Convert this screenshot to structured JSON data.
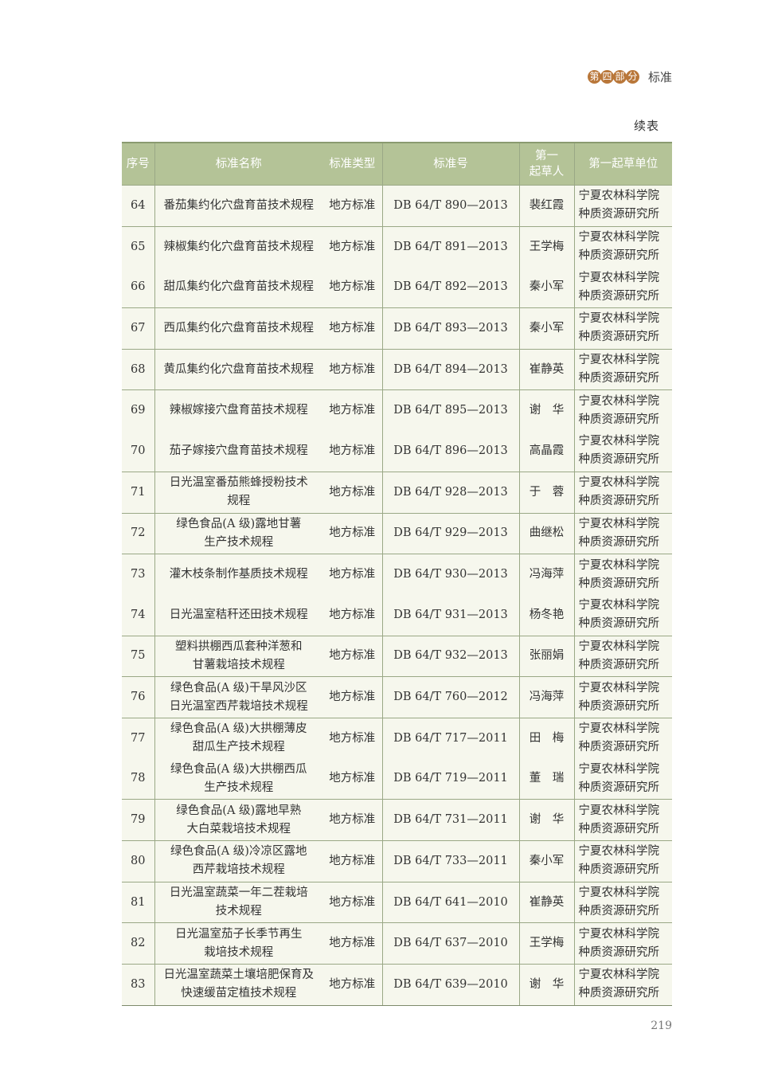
{
  "running_head": {
    "chip_chars": [
      "第",
      "四",
      "部",
      "分"
    ],
    "section": "标准"
  },
  "continued_label": "续表",
  "table": {
    "headers": [
      "序号",
      "标准名称",
      "标准类型",
      "标准号",
      "第一\n起草人",
      "第一起草单位"
    ],
    "rows": [
      [
        "64",
        "番茄集约化穴盘育苗技术规程",
        "地方标准",
        "DB 64/T 890—2013",
        "裴红霞",
        "宁夏农林科学院\n种质资源研究所"
      ],
      [
        "65",
        "辣椒集约化穴盘育苗技术规程",
        "地方标准",
        "DB 64/T 891—2013",
        "王学梅",
        "宁夏农林科学院\n种质资源研究所"
      ],
      [
        "66",
        "甜瓜集约化穴盘育苗技术规程",
        "地方标准",
        "DB 64/T 892—2013",
        "秦小军",
        "宁夏农林科学院\n种质资源研究所"
      ],
      [
        "67",
        "西瓜集约化穴盘育苗技术规程",
        "地方标准",
        "DB 64/T 893—2013",
        "秦小军",
        "宁夏农林科学院\n种质资源研究所"
      ],
      [
        "68",
        "黄瓜集约化穴盘育苗技术规程",
        "地方标准",
        "DB 64/T 894—2013",
        "崔静英",
        "宁夏农林科学院\n种质资源研究所"
      ],
      [
        "69",
        "辣椒嫁接穴盘育苗技术规程",
        "地方标准",
        "DB 64/T 895—2013",
        "谢　华",
        "宁夏农林科学院\n种质资源研究所"
      ],
      [
        "70",
        "茄子嫁接穴盘育苗技术规程",
        "地方标准",
        "DB 64/T 896—2013",
        "高晶霞",
        "宁夏农林科学院\n种质资源研究所"
      ],
      [
        "71",
        "日光温室番茄熊蜂授粉技术\n规程",
        "地方标准",
        "DB 64/T 928—2013",
        "于　蓉",
        "宁夏农林科学院\n种质资源研究所"
      ],
      [
        "72",
        "绿色食品(A 级)露地甘薯\n生产技术规程",
        "地方标准",
        "DB 64/T 929—2013",
        "曲继松",
        "宁夏农林科学院\n种质资源研究所"
      ],
      [
        "73",
        "灌木枝条制作基质技术规程",
        "地方标准",
        "DB 64/T 930—2013",
        "冯海萍",
        "宁夏农林科学院\n种质资源研究所"
      ],
      [
        "74",
        "日光温室秸秆还田技术规程",
        "地方标准",
        "DB 64/T 931—2013",
        "杨冬艳",
        "宁夏农林科学院\n种质资源研究所"
      ],
      [
        "75",
        "塑料拱棚西瓜套种洋葱和\n甘薯栽培技术规程",
        "地方标准",
        "DB 64/T 932—2013",
        "张丽娟",
        "宁夏农林科学院\n种质资源研究所"
      ],
      [
        "76",
        "绿色食品(A 级)干旱风沙区\n日光温室西芹栽培技术规程",
        "地方标准",
        "DB 64/T 760—2012",
        "冯海萍",
        "宁夏农林科学院\n种质资源研究所"
      ],
      [
        "77",
        "绿色食品(A 级)大拱棚薄皮\n甜瓜生产技术规程",
        "地方标准",
        "DB 64/T 717—2011",
        "田　梅",
        "宁夏农林科学院\n种质资源研究所"
      ],
      [
        "78",
        "绿色食品(A 级)大拱棚西瓜\n生产技术规程",
        "地方标准",
        "DB 64/T 719—2011",
        "董　瑞",
        "宁夏农林科学院\n种质资源研究所"
      ],
      [
        "79",
        "绿色食品(A 级)露地早熟\n大白菜栽培技术规程",
        "地方标准",
        "DB 64/T 731—2011",
        "谢　华",
        "宁夏农林科学院\n种质资源研究所"
      ],
      [
        "80",
        "绿色食品(A 级)冷凉区露地\n西芹栽培技术规程",
        "地方标准",
        "DB 64/T 733—2011",
        "秦小军",
        "宁夏农林科学院\n种质资源研究所"
      ],
      [
        "81",
        "日光温室蔬菜一年二茬栽培\n技术规程",
        "地方标准",
        "DB 64/T 641—2010",
        "崔静英",
        "宁夏农林科学院\n种质资源研究所"
      ],
      [
        "82",
        "日光温室茄子长季节再生\n栽培技术规程",
        "地方标准",
        "DB 64/T 637—2010",
        "王学梅",
        "宁夏农林科学院\n种质资源研究所"
      ],
      [
        "83",
        "日光温室蔬菜土壤培肥保育及\n快速缓苗定植技术规程",
        "地方标准",
        "DB 64/T 639—2010",
        "谢　华",
        "宁夏农林科学院\n种质资源研究所"
      ]
    ]
  },
  "page_number": "219",
  "colors": {
    "header_bg": "#b4c397",
    "cell_bg": "#f6f7ed",
    "chip": "#b9773a"
  }
}
